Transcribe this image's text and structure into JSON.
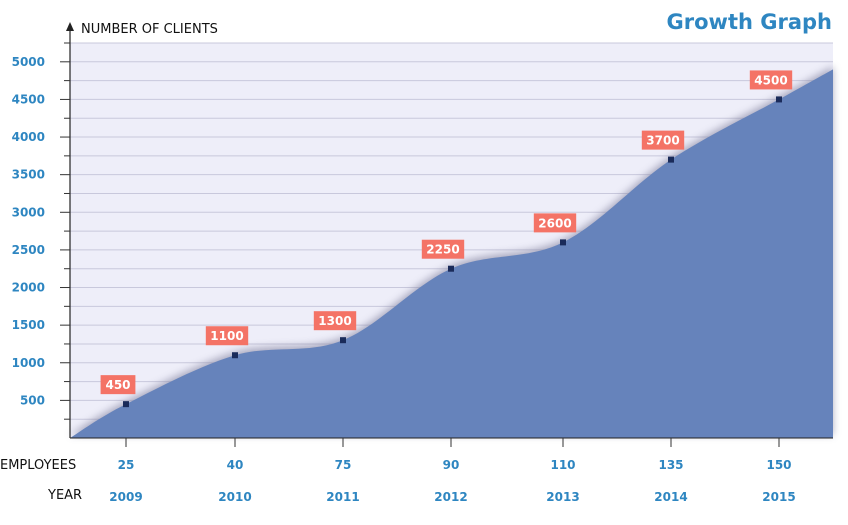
{
  "chart_data": {
    "type": "area",
    "title": "Growth Graph",
    "ylabel": "NUMBER OF CLIENTS",
    "ylim": [
      0,
      5250
    ],
    "yticks": [
      500,
      1000,
      1500,
      2000,
      2500,
      3000,
      3500,
      4000,
      4500,
      5000
    ],
    "x": [
      "2009",
      "2010",
      "2011",
      "2012",
      "2013",
      "2014",
      "2015"
    ],
    "xlabel": "YEAR",
    "employees_label": "EMPLOYEES",
    "employees": [
      "25",
      "40",
      "75",
      "90",
      "110",
      "135",
      "150"
    ],
    "series": [
      {
        "values": [
          450,
          1100,
          1300,
          2250,
          2600,
          3700,
          4500
        ]
      }
    ],
    "area_start": 0,
    "area_end": 4900,
    "grid": true,
    "colors": {
      "area": "#6683bb",
      "plot_bg": "#eeeef9",
      "grid": "#c8c8dc",
      "label_bg": "#f47366",
      "accent": "#2e86c1"
    }
  }
}
